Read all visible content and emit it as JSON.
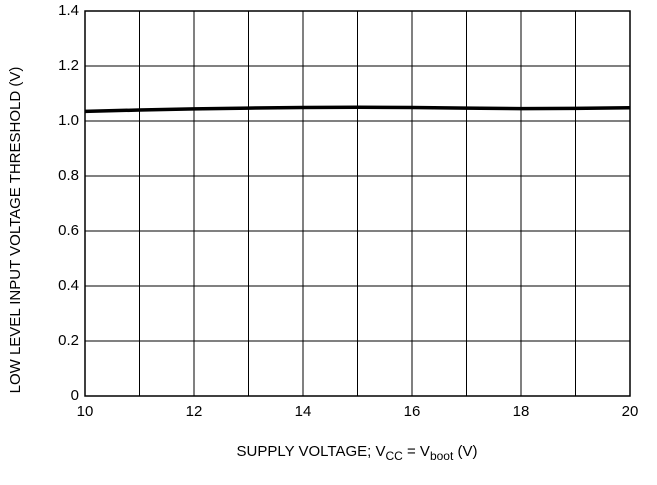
{
  "chart_data": {
    "type": "line",
    "xlabel_parts": [
      {
        "text": "SUPPLY VOLTAGE; V",
        "sub": false
      },
      {
        "text": "CC",
        "sub": true
      },
      {
        "text": " = V",
        "sub": false
      },
      {
        "text": "boot",
        "sub": true
      },
      {
        "text": " (V)",
        "sub": false
      }
    ],
    "ylabel": "LOW LEVEL INPUT VOLTAGE THRESHOLD (V)",
    "x": [
      10,
      11,
      12,
      13,
      14,
      15,
      16,
      17,
      18,
      19,
      20
    ],
    "series": [
      {
        "color": "#000000",
        "values": [
          1.035,
          1.04,
          1.044,
          1.047,
          1.049,
          1.05,
          1.049,
          1.047,
          1.045,
          1.046,
          1.048
        ]
      }
    ],
    "xlim": [
      10,
      20
    ],
    "ylim": [
      0,
      1.4
    ],
    "xticks": [
      10,
      12,
      14,
      16,
      18,
      20
    ],
    "xminorticks": [
      11,
      13,
      15,
      17,
      19
    ],
    "yticks": [
      0,
      {
        "value": 0.2,
        "label": "0.2"
      },
      {
        "value": 0.4,
        "label": "0.4"
      },
      {
        "value": 0.6,
        "label": "0.6"
      },
      {
        "value": 0.8,
        "label": "0.8"
      },
      {
        "value": 1.0,
        "label": "1.0"
      },
      {
        "value": 1.2,
        "label": "1.2"
      },
      {
        "value": 1.4,
        "label": "1.4"
      }
    ],
    "grid": true
  }
}
